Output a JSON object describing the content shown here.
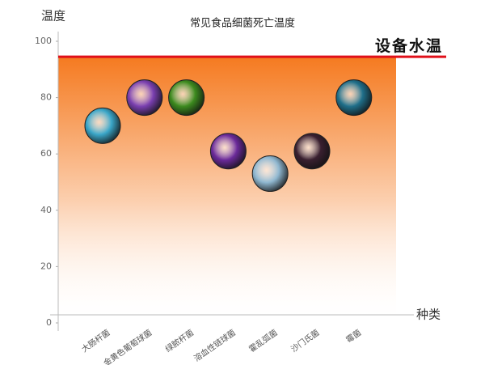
{
  "chart_data": {
    "type": "scatter",
    "title": "常见食品细菌死亡温度",
    "y_label": "温度",
    "x_label": "种类",
    "categories": [
      "大肠杆菌",
      "金黄色葡萄球菌",
      "绿脓杆菌",
      "溶血性链球菌",
      "霍乱弧菌",
      "沙门氏菌",
      "霉菌"
    ],
    "values": [
      70,
      80,
      80,
      61,
      53,
      61,
      80
    ],
    "marker_colors": [
      "#3aa6c8",
      "#7a3fb0",
      "#3c8a1e",
      "#6b2a9a",
      "#8fb7d0",
      "#3a2030",
      "#1f6f8a"
    ],
    "ylim": [
      0,
      100
    ],
    "yticks": [
      0,
      20,
      40,
      60,
      80,
      100
    ],
    "annotation": {
      "text": "设备水温",
      "value": 94.5,
      "color": "#e0101a"
    },
    "fill_color": "#f57a20"
  }
}
